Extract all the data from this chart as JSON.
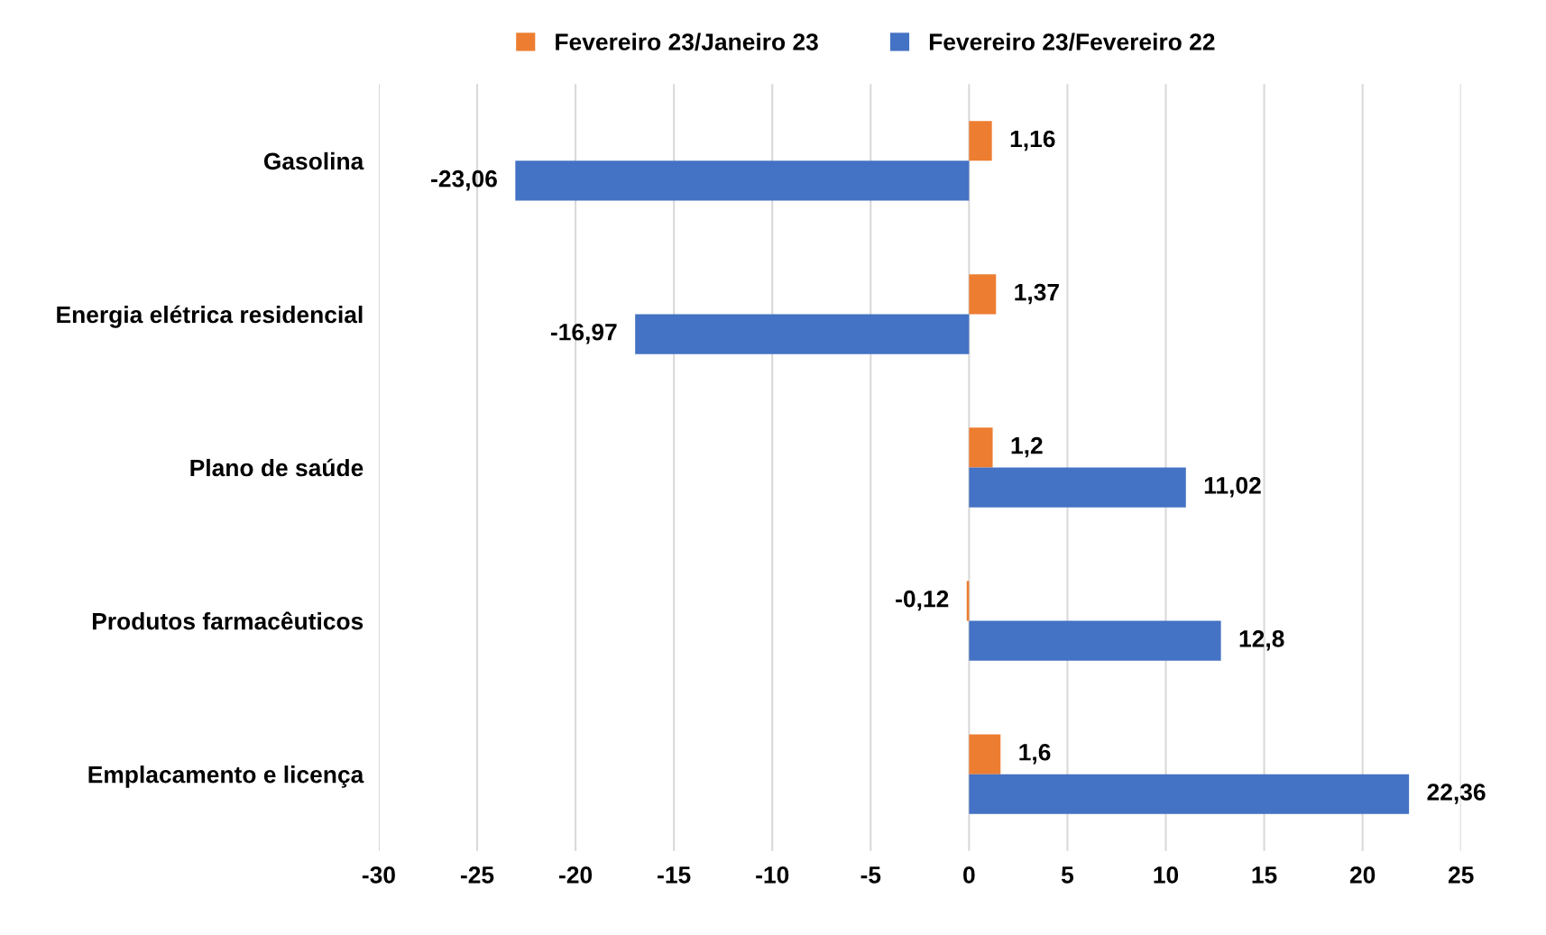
{
  "chart_data": {
    "type": "bar",
    "orientation": "horizontal",
    "legend": "top",
    "grid": "x",
    "categories": [
      "Gasolina",
      "Energia elétrica residencial",
      "Plano de saúde",
      "Produtos farmacêuticos",
      "Emplacamento e licença"
    ],
    "series": [
      {
        "name": "Fevereiro 23/Janeiro 23",
        "color": "#ed7d31",
        "values": [
          1.16,
          1.37,
          1.2,
          -0.12,
          1.6
        ],
        "value_labels": [
          "1,16",
          "1,37",
          "1,2",
          "-0,12",
          "1,6"
        ]
      },
      {
        "name": "Fevereiro 23/Fevereiro 22",
        "color": "#4472c4",
        "values": [
          -23.06,
          -16.97,
          11.02,
          12.8,
          22.36
        ],
        "value_labels": [
          "-23,06",
          "-16,97",
          "11,02",
          "12,8",
          "22,36"
        ]
      }
    ],
    "xlim": [
      -30,
      25
    ],
    "xticks": [
      -30,
      -25,
      -20,
      -15,
      -10,
      -5,
      0,
      5,
      10,
      15,
      20,
      25
    ]
  }
}
